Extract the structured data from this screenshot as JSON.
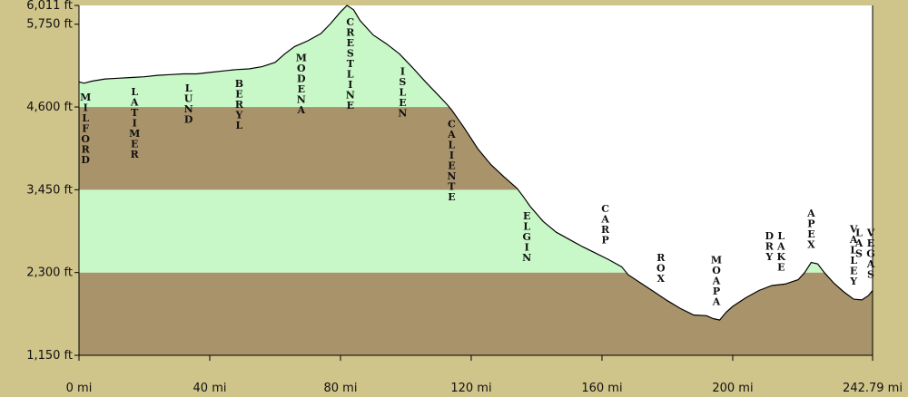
{
  "chart_data": {
    "type": "area",
    "title": "",
    "xlabel": "",
    "ylabel": "",
    "xlim": [
      0,
      242.79
    ],
    "ylim": [
      1150,
      6011
    ],
    "x_tick_labels": [
      "0 mi",
      "40 mi",
      "80 mi",
      "120 mi",
      "160 mi",
      "200 mi",
      "242.79 mi"
    ],
    "x_tick_values": [
      0,
      40,
      80,
      120,
      160,
      200,
      242.79
    ],
    "y_tick_labels": [
      "1,150 ft",
      "2,300 ft",
      "3,450 ft",
      "4,600 ft",
      "5,750 ft",
      "6,011 ft"
    ],
    "y_tick_values": [
      1150,
      2300,
      3450,
      4600,
      5750,
      6011
    ],
    "band_colors": [
      "#a9936a",
      "#c8f7c8"
    ],
    "profile": [
      [
        0,
        4950
      ],
      [
        1.5,
        4930
      ],
      [
        4,
        4960
      ],
      [
        8,
        4990
      ],
      [
        12,
        5000
      ],
      [
        16,
        5010
      ],
      [
        20,
        5020
      ],
      [
        24,
        5040
      ],
      [
        28,
        5050
      ],
      [
        32,
        5060
      ],
      [
        36,
        5060
      ],
      [
        40,
        5080
      ],
      [
        44,
        5100
      ],
      [
        48,
        5120
      ],
      [
        52,
        5130
      ],
      [
        56,
        5160
      ],
      [
        60,
        5220
      ],
      [
        63,
        5340
      ],
      [
        66,
        5440
      ],
      [
        70,
        5520
      ],
      [
        74,
        5620
      ],
      [
        77,
        5760
      ],
      [
        80,
        5920
      ],
      [
        82,
        6011
      ],
      [
        84,
        5950
      ],
      [
        86,
        5800
      ],
      [
        90,
        5600
      ],
      [
        94,
        5480
      ],
      [
        98,
        5340
      ],
      [
        102,
        5150
      ],
      [
        106,
        4950
      ],
      [
        110,
        4760
      ],
      [
        112.5,
        4640
      ],
      [
        114,
        4560
      ],
      [
        118,
        4300
      ],
      [
        122,
        4020
      ],
      [
        126,
        3800
      ],
      [
        130,
        3630
      ],
      [
        134,
        3470
      ],
      [
        136,
        3350
      ],
      [
        138,
        3220
      ],
      [
        142,
        3010
      ],
      [
        146,
        2860
      ],
      [
        150,
        2760
      ],
      [
        154,
        2660
      ],
      [
        158,
        2570
      ],
      [
        162,
        2480
      ],
      [
        166,
        2380
      ],
      [
        168,
        2270
      ],
      [
        172,
        2150
      ],
      [
        176,
        2030
      ],
      [
        180,
        1910
      ],
      [
        184,
        1800
      ],
      [
        188,
        1710
      ],
      [
        192,
        1700
      ],
      [
        194,
        1660
      ],
      [
        196,
        1640
      ],
      [
        198,
        1750
      ],
      [
        200,
        1830
      ],
      [
        204,
        1950
      ],
      [
        208,
        2050
      ],
      [
        212,
        2120
      ],
      [
        216,
        2140
      ],
      [
        220,
        2200
      ],
      [
        222,
        2300
      ],
      [
        224,
        2440
      ],
      [
        226,
        2420
      ],
      [
        228,
        2300
      ],
      [
        231,
        2150
      ],
      [
        234,
        2030
      ],
      [
        237,
        1930
      ],
      [
        239.5,
        1920
      ],
      [
        241.5,
        1980
      ],
      [
        242.79,
        2050
      ]
    ],
    "stations": [
      {
        "name": "MILFORD",
        "mile": 2
      },
      {
        "name": "LATIMER",
        "mile": 17
      },
      {
        "name": "LUND",
        "mile": 33.5
      },
      {
        "name": "BERYL",
        "mile": 49
      },
      {
        "name": "MODENA",
        "mile": 68
      },
      {
        "name": "CRESTLINE",
        "mile": 83
      },
      {
        "name": "ISLEN",
        "mile": 99
      },
      {
        "name": "CALIENTE",
        "mile": 114
      },
      {
        "name": "ELGIN",
        "mile": 137
      },
      {
        "name": "CARP",
        "mile": 161
      },
      {
        "name": "ROX",
        "mile": 178
      },
      {
        "name": "MOAPA",
        "mile": 195
      },
      {
        "name": "DRY LAKE",
        "mile": 213
      },
      {
        "name": "APEX",
        "mile": 224
      },
      {
        "name": "VALLEY",
        "mile": 237
      },
      {
        "name": "LAS VEGAS",
        "mile": 242.79
      }
    ]
  }
}
